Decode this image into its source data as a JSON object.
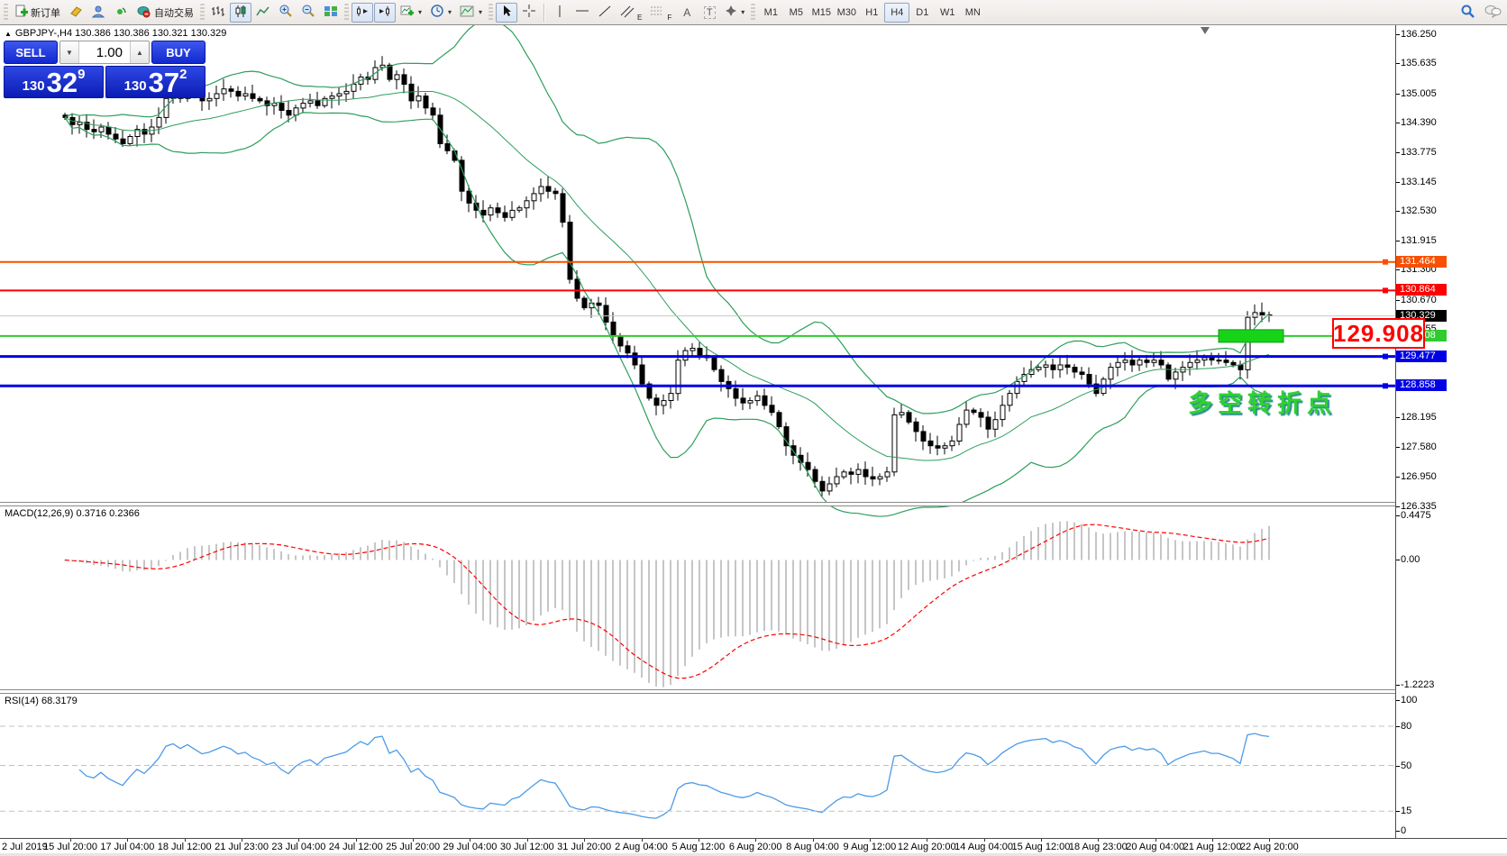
{
  "toolbar": {
    "new_order_label": "新订单",
    "auto_trading_label": "自动交易",
    "tool_letters": {
      "text": "A",
      "text_label": "T",
      "channel": "E",
      "fibo": "F"
    },
    "timeframes": [
      "M1",
      "M5",
      "M15",
      "M30",
      "H1",
      "H4",
      "D1",
      "W1",
      "MN"
    ],
    "active_timeframe": "H4",
    "icons": [
      "new-order-icon",
      "eraser-icon",
      "profile-icon",
      "signal-icon",
      "auto-trading-icon",
      "bar-chart-icon",
      "candlestick-icon",
      "line-chart-icon",
      "zoom-in-icon",
      "zoom-out-icon",
      "tile-windows-icon",
      "chart-shift-icon",
      "auto-scroll-icon",
      "new-chart-icon",
      "periods-icon",
      "templates-icon",
      "cursor-icon",
      "crosshair-icon",
      "vertical-line-icon",
      "horizontal-line-icon",
      "trendline-icon",
      "channel-icon",
      "fibonacci-icon",
      "text-icon",
      "text-label-icon",
      "arrows-icon",
      "search-icon",
      "chat-icon"
    ]
  },
  "quote_panel": {
    "symbol_line": "GBPJPY-,H4  130.386 130.386 130.321 130.329",
    "sell_label": "SELL",
    "buy_label": "BUY",
    "volume": "1.00",
    "sell_price": {
      "prefix": "130",
      "big": "32",
      "sup": "9"
    },
    "buy_price": {
      "prefix": "130",
      "big": "37",
      "sup": "2"
    }
  },
  "indicator_labels": {
    "macd": "MACD(12,26,9) 0.3716 0.2366",
    "rsi": "RSI(14) 68.3179"
  },
  "annotations": {
    "price_box_text": "129.908",
    "cn_text": "多空转折点"
  },
  "price_axis": {
    "ticks": [
      "136.250",
      "135.635",
      "135.005",
      "134.390",
      "133.775",
      "133.145",
      "132.530",
      "131.915",
      "131.300",
      "130.670",
      "130.055",
      "128.195",
      "127.580",
      "126.950",
      "126.335"
    ],
    "colored_labels": [
      {
        "text": "131.464",
        "price": 131.464,
        "color": "#f75000"
      },
      {
        "text": "130.864",
        "price": 130.864,
        "color": "#ff0000"
      },
      {
        "text": "130.329",
        "price": 130.329,
        "color": "#000000"
      },
      {
        "text": "129.908",
        "price": 129.908,
        "color": "#2fcc2f"
      },
      {
        "text": "129.477",
        "price": 129.477,
        "color": "#0000e6"
      },
      {
        "text": "128.858",
        "price": 128.858,
        "color": "#0000e6"
      }
    ]
  },
  "macd_axis": {
    "top": "0.4475",
    "zero": "0.00",
    "bottom": "-1.2223"
  },
  "rsi_axis": {
    "ticks": [
      {
        "v": 100,
        "t": "100"
      },
      {
        "v": 80,
        "t": "80"
      },
      {
        "v": 50,
        "t": "50"
      },
      {
        "v": 15,
        "t": "15"
      },
      {
        "v": 0,
        "t": "0"
      }
    ],
    "dashed_levels": [
      80,
      50,
      15
    ]
  },
  "chart_data": {
    "type": "candlestick",
    "symbol": "GBPJPY-",
    "timeframe": "H4",
    "ohlc_display": {
      "open": "130.386",
      "high": "130.386",
      "low": "130.321",
      "close": "130.329"
    },
    "bid": 130.329,
    "ask": 130.372,
    "price_range": [
      126.335,
      136.25
    ],
    "closes": [
      134.5,
      134.35,
      134.4,
      134.25,
      134.2,
      134.3,
      134.15,
      134.05,
      133.95,
      134.1,
      134.25,
      134.15,
      134.3,
      134.5,
      134.9,
      135.0,
      134.9,
      135.05,
      134.95,
      134.85,
      134.9,
      135.0,
      135.1,
      135.05,
      134.95,
      135.0,
      134.9,
      134.85,
      134.75,
      134.8,
      134.65,
      134.55,
      134.7,
      134.8,
      134.85,
      134.75,
      134.9,
      134.95,
      135.0,
      135.05,
      135.2,
      135.35,
      135.3,
      135.55,
      135.6,
      135.3,
      135.4,
      135.2,
      134.85,
      134.95,
      134.7,
      134.55,
      133.95,
      133.8,
      133.6,
      132.95,
      132.7,
      132.55,
      132.45,
      132.6,
      132.5,
      132.4,
      132.55,
      132.6,
      132.75,
      132.9,
      133.05,
      132.95,
      132.9,
      132.3,
      131.1,
      130.7,
      130.5,
      130.6,
      130.55,
      130.2,
      129.9,
      129.7,
      129.55,
      129.3,
      128.9,
      128.6,
      128.45,
      128.55,
      128.7,
      129.4,
      129.6,
      129.65,
      129.5,
      129.45,
      129.2,
      128.95,
      128.8,
      128.6,
      128.5,
      128.55,
      128.65,
      128.45,
      128.3,
      128.0,
      127.6,
      127.4,
      127.25,
      127.1,
      126.85,
      126.65,
      126.8,
      126.95,
      127.05,
      127.0,
      127.1,
      126.95,
      126.9,
      126.95,
      127.05,
      128.25,
      128.3,
      128.1,
      127.9,
      127.7,
      127.6,
      127.55,
      127.6,
      127.7,
      128.05,
      128.35,
      128.3,
      128.2,
      127.95,
      128.15,
      128.45,
      128.7,
      128.95,
      129.1,
      129.2,
      129.25,
      129.3,
      129.2,
      129.3,
      129.25,
      129.15,
      129.1,
      128.9,
      128.7,
      129.0,
      129.25,
      129.35,
      129.4,
      129.3,
      129.4,
      129.35,
      129.4,
      129.3,
      129.0,
      129.15,
      129.25,
      129.35,
      129.4,
      129.45,
      129.4,
      129.4,
      129.35,
      129.3,
      129.2,
      130.3,
      130.4,
      130.35,
      130.33
    ],
    "bollinger": {
      "period": 20,
      "deviation": 2
    },
    "macd": {
      "fast": 12,
      "slow": 26,
      "signal": 9,
      "value": 0.3716,
      "signal_value": 0.2366,
      "range": [
        -1.2223,
        0.4475
      ]
    },
    "rsi": {
      "period": 14,
      "value": 68.3179,
      "range": [
        0,
        100
      ],
      "levels": [
        80,
        50,
        15
      ]
    },
    "hlines": [
      {
        "price": 131.464,
        "color": "#f75000",
        "width": 2
      },
      {
        "price": 130.864,
        "color": "#ff0000",
        "width": 2
      },
      {
        "price": 129.908,
        "color": "#2fcc2f",
        "width": 2
      },
      {
        "price": 129.477,
        "color": "#0000e6",
        "width": 3
      },
      {
        "price": 128.858,
        "color": "#0000e6",
        "width": 3
      }
    ],
    "current_price": 130.329,
    "green_box": {
      "price": 129.908,
      "from_index": 160,
      "to_index": 169,
      "color": "#17d317"
    },
    "time_labels": [
      "2 Jul 2019",
      "15 Jul 20:00",
      "17 Jul 04:00",
      "18 Jul 12:00",
      "21 Jul 23:00",
      "23 Jul 04:00",
      "24 Jul 12:00",
      "25 Jul 20:00",
      "29 Jul 04:00",
      "30 Jul 12:00",
      "31 Jul 20:00",
      "2 Aug 04:00",
      "5 Aug 12:00",
      "6 Aug 20:00",
      "8 Aug 04:00",
      "9 Aug 12:00",
      "12 Aug 20:00",
      "14 Aug 04:00",
      "15 Aug 12:00",
      "18 Aug 23:00",
      "20 Aug 04:00",
      "21 Aug 12:00",
      "22 Aug 20:00"
    ]
  },
  "colors": {
    "bull": "#ffffff",
    "bear": "#000000",
    "outline": "#000000",
    "bollinger": "#2e9e5b",
    "macd_hist": "#c6c6c6",
    "macd_signal": "#ff0000",
    "rsi_line": "#4c9be8",
    "bid_line": "#c8c8c8",
    "panel_blue": "#1228cf"
  }
}
